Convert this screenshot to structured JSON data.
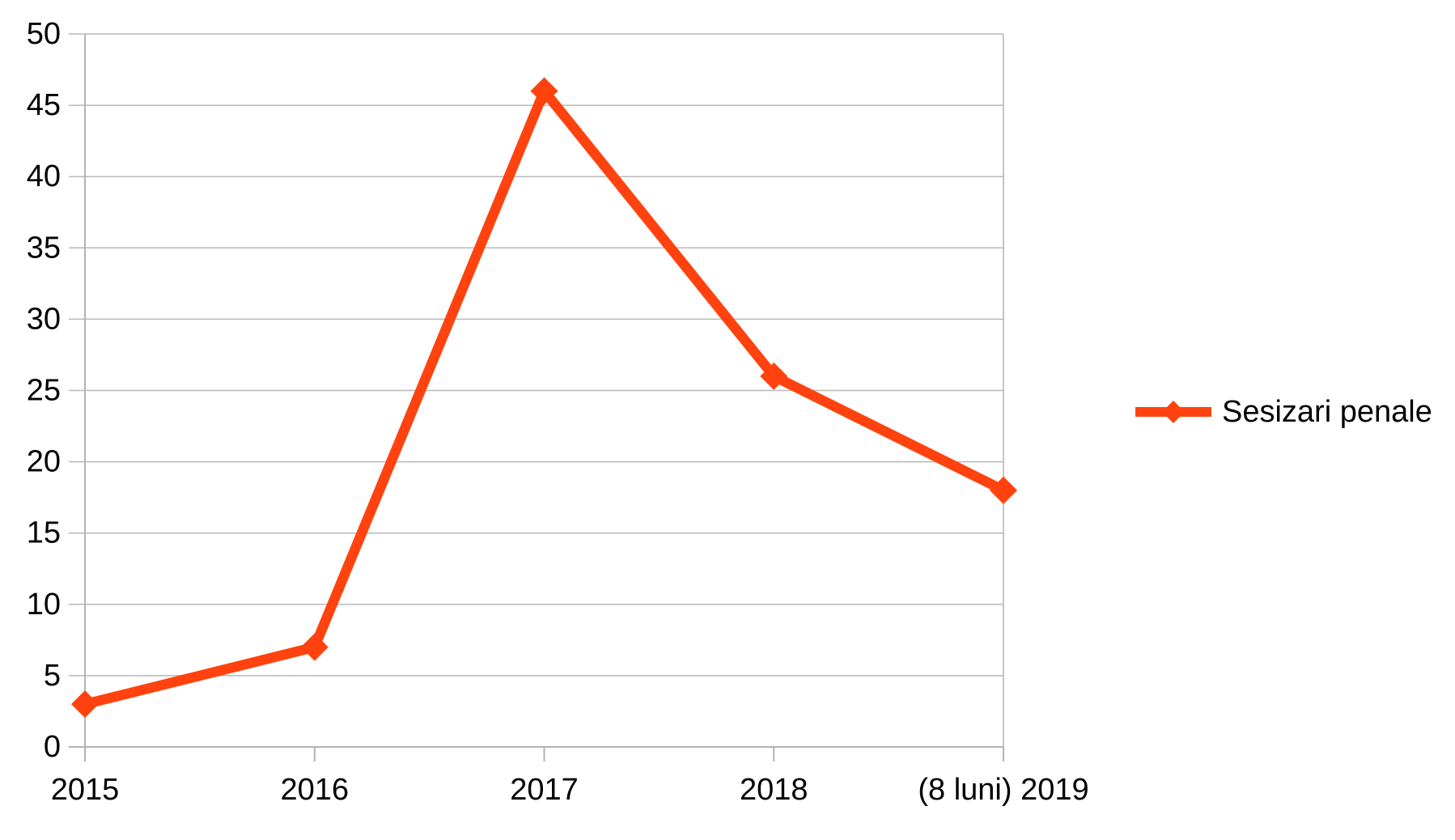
{
  "chart_data": {
    "type": "line",
    "categories": [
      "2015",
      "2016",
      "2017",
      "2018",
      "(8 luni) 2019"
    ],
    "series": [
      {
        "name": "Sesizari penale",
        "color": "#ff420e",
        "values": [
          3,
          7,
          46,
          26,
          18
        ]
      }
    ],
    "title": "",
    "xlabel": "",
    "ylabel": "",
    "ylim": [
      0,
      50
    ],
    "ytick_step": 5,
    "yticklabels": [
      "0",
      "5",
      "10",
      "15",
      "20",
      "25",
      "30",
      "35",
      "40",
      "45",
      "50"
    ],
    "grid": "horizontal-major",
    "marker": "diamond",
    "legend": {
      "position": "right",
      "entries": [
        "Sesizari penale"
      ]
    },
    "colors": {
      "background": "#ffffff",
      "axis": "#b3b3b3",
      "gridline": "#b8b8b8",
      "text": "#000000",
      "series": "#ff420e"
    }
  }
}
